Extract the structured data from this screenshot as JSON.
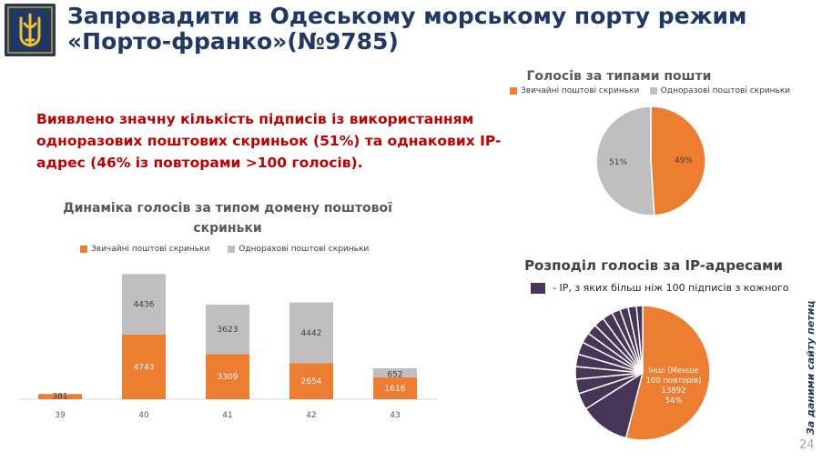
{
  "header": {
    "title_line1": "Запровадити в Одеському морському порту режим",
    "title_line2": "«Порто-франко»(№9785)",
    "emblem_name": "trident-emblem"
  },
  "colors": {
    "orange": "#ed7d31",
    "grey": "#bfbfbf",
    "purple": "#473658",
    "navy": "#1f3864",
    "red": "#c00000"
  },
  "highlight": {
    "line1": "Виявлено значну кількість підписів із використанням",
    "line2": "одноразових поштових скриньок (51%) та однакових IP-",
    "line3": "адрес (46% із повторами >100 голосів)."
  },
  "mail_pie": {
    "title": "Голосів за типами пошти",
    "legend": [
      "Звичайні поштові скриньки",
      "Одноразові поштові скриньки"
    ],
    "chart_data": {
      "type": "pie",
      "labels": [
        "Звичайні поштові скриньки",
        "Одноразові поштові скриньки"
      ],
      "values": [
        49,
        51
      ],
      "data_labels": [
        "49%",
        "51%"
      ]
    }
  },
  "domain_bar": {
    "title_line1": "Динаміка голосів за типом домену поштової",
    "title_line2": "скриньки",
    "legend": [
      "Звичайні поштові скриньки",
      "Однорахові поштові скриньки"
    ],
    "chart_data": {
      "type": "bar",
      "stacked": true,
      "categories": [
        "39",
        "40",
        "41",
        "42",
        "43"
      ],
      "series": [
        {
          "name": "Звичайні поштові скриньки",
          "values": [
            381,
            4743,
            3309,
            2654,
            1616
          ]
        },
        {
          "name": "Однорахові поштові скриньки",
          "values": [
            0,
            4436,
            3623,
            4442,
            652
          ]
        }
      ],
      "ylim": [
        0,
        10000
      ]
    }
  },
  "ip_pie": {
    "title": "Розподіл голосів за IP-адресами",
    "legend": "- IP, з яких більш ніж 100 підписів з кожного",
    "chart_data": {
      "type": "pie",
      "others_share": 54,
      "others_label_lines": [
        "Інші (Менше",
        "100 повторів)",
        "13892",
        "54%"
      ],
      "ip_slices_share": [
        12,
        4,
        3.5,
        3,
        3,
        3,
        2.5,
        2.5,
        2.5,
        2.5,
        2,
        2,
        2,
        1.5
      ]
    }
  },
  "footer": {
    "side_note": "За даними сайту петицій",
    "page_number": "24"
  }
}
